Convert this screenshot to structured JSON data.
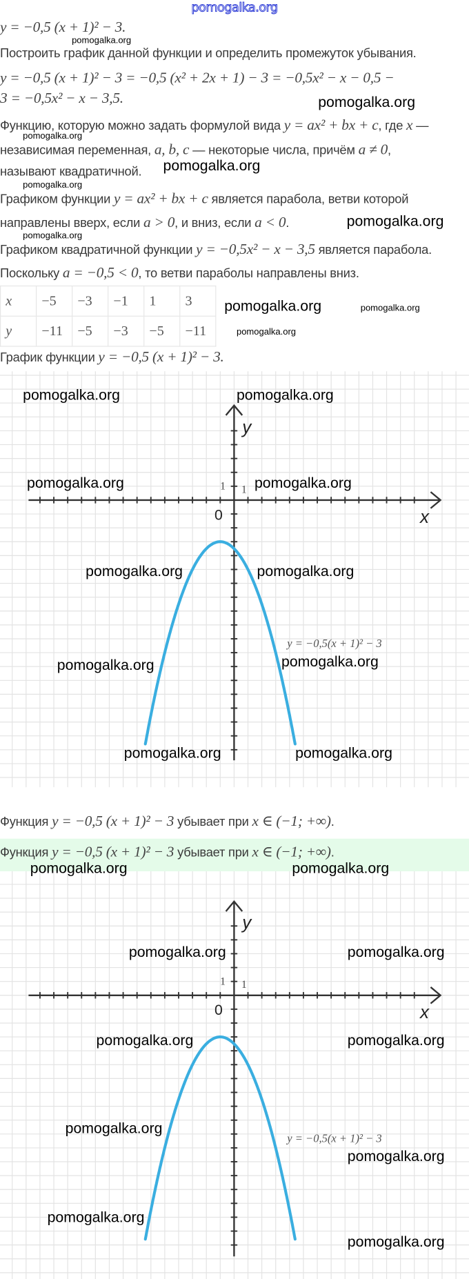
{
  "watermark_top": "pomogalka.org",
  "watermark": "pomogalka.org",
  "lines": [
    [
      {
        "t": "y = −0,5 (x + 1)² − 3.",
        "m": 1
      }
    ],
    [
      {
        "t": "Построить график данной функции и определить промежуток убывания."
      }
    ],
    [
      {
        "t": "y = −0,5 (x + 1)² − 3 = −0,5 (x² + 2x + 1) − 3 = −0,5x² − x − 0,5 −",
        "m": 1
      }
    ],
    [
      {
        "t": "3 = −0,5x² − x − 3,5.",
        "m": 1
      }
    ],
    [
      {
        "t": "Функцию, которую можно задать формулой вида "
      },
      {
        "t": "y = ax² + bx + c",
        "m": 1
      },
      {
        "t": ", где "
      },
      {
        "t": "x",
        "m": 1
      },
      {
        "t": " —"
      }
    ],
    [
      {
        "t": "независимая переменная, "
      },
      {
        "t": "a,  b,  c",
        "m": 1
      },
      {
        "t": " — некоторые числа, причём "
      },
      {
        "t": "a ≠ 0",
        "m": 1
      },
      {
        "t": ","
      }
    ],
    [
      {
        "t": "называют квадратичной."
      }
    ],
    [
      {
        "t": "Графиком функции "
      },
      {
        "t": "y = ax² + bx + c",
        "m": 1
      },
      {
        "t": " является парабола, ветви которой"
      }
    ],
    [
      {
        "t": "направлены вверх, если "
      },
      {
        "t": "a  >  0",
        "m": 1
      },
      {
        "t": ", и вниз, если "
      },
      {
        "t": "a  <  0",
        "m": 1
      },
      {
        "t": "."
      }
    ],
    [
      {
        "t": "Графиком квадратичной функции "
      },
      {
        "t": "y = −0,5x² − x − 3,5",
        "m": 1
      },
      {
        "t": " является парабола."
      }
    ],
    [
      {
        "t": "Поскольку "
      },
      {
        "t": "a = −0,5  <  0",
        "m": 1
      },
      {
        "t": ", то ветви параболы направлены вниз."
      }
    ],
    [
      {
        "t": "График функции "
      },
      {
        "t": "y = −0,5 (x + 1)² − 3.",
        "m": 1
      }
    ],
    [
      {
        "t": "Функция "
      },
      {
        "t": "y = −0,5 (x + 1)² − 3",
        "m": 1
      },
      {
        "t": " убывает при "
      },
      {
        "t": "x ∈ (−1;  +∞)",
        "m": 1
      },
      {
        "t": "."
      }
    ],
    [
      {
        "t": "Функция "
      },
      {
        "t": "y = −0,5 (x + 1)² − 3",
        "m": 1
      },
      {
        "t": " убывает при "
      },
      {
        "t": "x ∈ (−1;  +∞)",
        "m": 1
      },
      {
        "t": "."
      }
    ]
  ],
  "table": {
    "rows": [
      [
        "x",
        "−5",
        "−3",
        "−1",
        "1",
        "3"
      ],
      [
        "y",
        "−11",
        "−5",
        "−3",
        "−5",
        "−11"
      ]
    ]
  },
  "graph": {
    "x_axis_label": "x",
    "y_axis_label": "y",
    "origin_label": "0",
    "unit_label_y": "1",
    "unit_label_x": "1",
    "function_label": "y = −0,5(x + 1)² − 3",
    "curve_color": "#3aaee0",
    "function": {
      "a": -0.5,
      "h": -1,
      "k": -3
    },
    "x_range": [
      -6.4,
      4.4
    ],
    "highlight_color": "#e4fbe9"
  }
}
